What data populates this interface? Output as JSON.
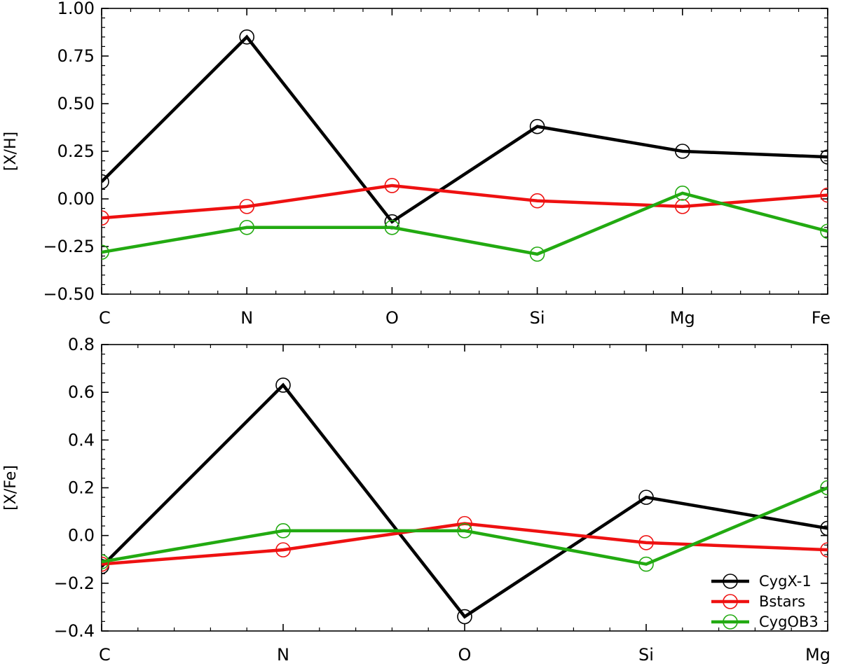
{
  "chart_data": [
    {
      "type": "line",
      "name": "top",
      "categories": [
        "C",
        "N",
        "O",
        "Si",
        "Mg",
        "Fe"
      ],
      "ylabel": "[X/H]",
      "ylim": [
        -0.5,
        1.0
      ],
      "yticks": [
        -0.5,
        -0.25,
        0.0,
        0.25,
        0.5,
        0.75,
        1.0
      ],
      "ytick_labels": [
        "−0.50",
        "−0.25",
        "0.00",
        "0.25",
        "0.50",
        "0.75",
        "1.00"
      ],
      "series": [
        {
          "name": "CygX-1",
          "color": "#000000",
          "values": [
            0.09,
            0.85,
            -0.12,
            0.38,
            0.25,
            0.22
          ]
        },
        {
          "name": "Bstars",
          "color": "#ee1111",
          "values": [
            -0.1,
            -0.04,
            0.07,
            -0.01,
            -0.04,
            0.02
          ]
        },
        {
          "name": "CygOB3",
          "color": "#22aa11",
          "values": [
            -0.28,
            -0.15,
            -0.15,
            -0.29,
            0.03,
            -0.17
          ]
        }
      ]
    },
    {
      "type": "line",
      "name": "bottom",
      "categories": [
        "C",
        "N",
        "O",
        "Si",
        "Mg"
      ],
      "ylabel": "[X/Fe]",
      "ylim": [
        -0.4,
        0.8
      ],
      "yticks": [
        -0.4,
        -0.2,
        0.0,
        0.2,
        0.4,
        0.6,
        0.8
      ],
      "ytick_labels": [
        "−0.4",
        "−0.2",
        "0.0",
        "0.2",
        "0.4",
        "0.6",
        "0.8"
      ],
      "legend": "bottom-right",
      "series": [
        {
          "name": "CygX-1",
          "color": "#000000",
          "values": [
            -0.13,
            0.63,
            -0.34,
            0.16,
            0.03
          ]
        },
        {
          "name": "Bstars",
          "color": "#ee1111",
          "values": [
            -0.12,
            -0.06,
            0.05,
            -0.03,
            -0.06
          ]
        },
        {
          "name": "CygOB3",
          "color": "#22aa11",
          "values": [
            -0.11,
            0.02,
            0.02,
            -0.12,
            0.2
          ]
        }
      ]
    }
  ]
}
